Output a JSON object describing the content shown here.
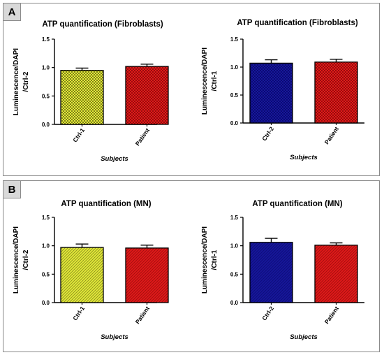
{
  "colors": {
    "ctrl1": "#e5ec3a",
    "ctrl1_pattern": "#2a2a00",
    "patient": "#e11a1a",
    "patient_pattern": "#5a0000",
    "ctrl2": "#17179a",
    "ctrl2_pattern": "#000055"
  },
  "panels": [
    {
      "letter": "A"
    },
    {
      "letter": "B"
    }
  ],
  "chart_data": [
    {
      "type": "bar",
      "title": "ATP quantification (Fibroblasts)",
      "ylabel_lines": [
        "Luminescence/DAPI",
        "/Ctrl-2"
      ],
      "xlabel": "Subjects",
      "categories": [
        "Ctrl-1",
        "Patient"
      ],
      "values": [
        0.95,
        1.02
      ],
      "errors": [
        0.04,
        0.04
      ],
      "ylim": [
        0,
        1.5
      ],
      "yticks": [
        "0.0",
        "0.5",
        "1.0",
        "1.5"
      ],
      "bar_colors": [
        "ctrl1",
        "patient"
      ],
      "pattern": "checker"
    },
    {
      "type": "bar",
      "title": "ATP quantification (Fibroblasts)",
      "ylabel_lines": [
        "Luminescence/DAPI",
        "/Ctrl-1"
      ],
      "xlabel": "Subjects",
      "categories": [
        "Ctrl-2",
        "Patient"
      ],
      "values": [
        1.07,
        1.09
      ],
      "errors": [
        0.06,
        0.05
      ],
      "ylim": [
        0,
        1.5
      ],
      "yticks": [
        "0.0",
        "0.5",
        "1.0",
        "1.5"
      ],
      "bar_colors": [
        "ctrl2",
        "patient"
      ],
      "pattern": "checker"
    },
    {
      "type": "bar",
      "title": "ATP quantification (MN)",
      "ylabel_lines": [
        "Luminescence/DAPI",
        "/Ctrl-2"
      ],
      "xlabel": "Subjects",
      "categories": [
        "Ctrl-1",
        "Patient"
      ],
      "values": [
        0.97,
        0.96
      ],
      "errors": [
        0.06,
        0.05
      ],
      "ylim": [
        0,
        1.5
      ],
      "yticks": [
        "0.0",
        "0.5",
        "1.0",
        "1.5"
      ],
      "bar_colors": [
        "ctrl1",
        "patient"
      ],
      "pattern": "diagonal"
    },
    {
      "type": "bar",
      "title": "ATP quantification (MN)",
      "ylabel_lines": [
        "Luminescence/DAPI",
        "/Ctrl-1"
      ],
      "xlabel": "Subjects",
      "categories": [
        "Ctrl-2",
        "Patient"
      ],
      "values": [
        1.06,
        1.01
      ],
      "errors": [
        0.07,
        0.04
      ],
      "ylim": [
        0,
        1.5
      ],
      "yticks": [
        "0.0",
        "0.5",
        "1.0",
        "1.5"
      ],
      "bar_colors": [
        "ctrl2",
        "patient"
      ],
      "pattern": "diagonal"
    }
  ]
}
